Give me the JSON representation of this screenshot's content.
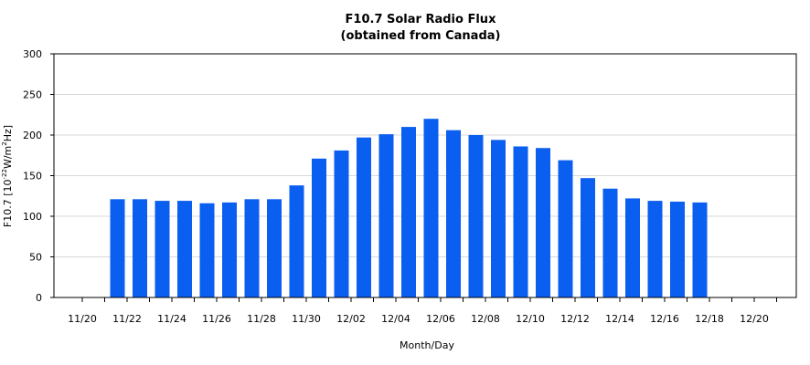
{
  "chart_data": {
    "type": "bar",
    "title": "F10.7 Solar Radio Flux",
    "subtitle": "(obtained from Canada)",
    "xlabel": "Month/Day",
    "ylabel": {
      "prefix": "F10.7 [10",
      "exp1": "-22",
      "mid": "W/m",
      "exp2": "2",
      "suffix": "Hz]"
    },
    "ylim": [
      0,
      300
    ],
    "yticks": [
      "0",
      "50",
      "100",
      "150",
      "200",
      "250",
      "300"
    ],
    "grid": true,
    "legend": "none",
    "bar_color": "#0a5ef0",
    "categories": [
      "11/20",
      "11/21",
      "11/22",
      "11/23",
      "11/24",
      "11/25",
      "11/26",
      "11/27",
      "11/28",
      "11/29",
      "11/30",
      "12/01",
      "12/02",
      "12/03",
      "12/04",
      "12/05",
      "12/06",
      "12/07",
      "12/08",
      "12/09",
      "12/10",
      "12/11",
      "12/12",
      "12/13",
      "12/14",
      "12/15",
      "12/16",
      "12/17",
      "12/18",
      "12/19",
      "12/20",
      "12/21"
    ],
    "values": [
      null,
      121,
      121,
      119,
      119,
      116,
      117,
      121,
      121,
      138,
      171,
      181,
      197,
      201,
      210,
      220,
      206,
      200,
      194,
      186,
      184,
      169,
      147,
      134,
      122,
      119,
      118,
      117,
      null,
      null,
      null,
      null
    ],
    "xtick_labels": [
      "11/20",
      "11/22",
      "11/24",
      "11/26",
      "11/28",
      "11/30",
      "12/02",
      "12/04",
      "12/06",
      "12/08",
      "12/10",
      "12/12",
      "12/14",
      "12/16",
      "12/18",
      "12/20"
    ]
  }
}
